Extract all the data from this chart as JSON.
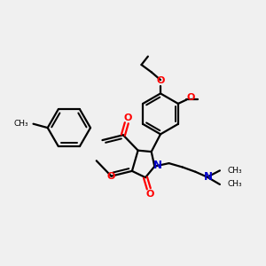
{
  "background_color": "#f0f0f0",
  "line_color": "#000000",
  "oxygen_color": "#ff0000",
  "nitrogen_color": "#0000cc",
  "bond_width": 1.6,
  "figsize": [
    3.0,
    3.0
  ],
  "dpi": 100,
  "xlim": [
    0,
    10
  ],
  "ylim": [
    0,
    10
  ]
}
